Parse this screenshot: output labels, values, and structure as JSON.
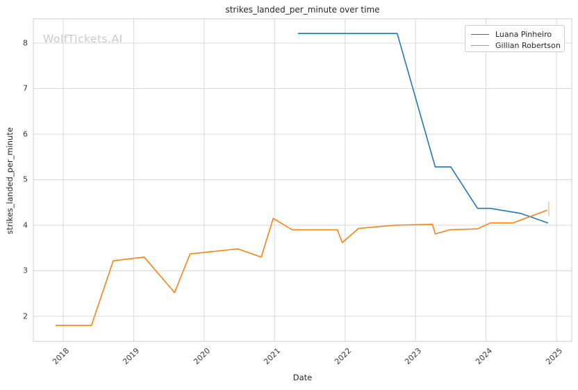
{
  "figure": {
    "title": "strikes_landed_per_minute over time",
    "watermark": "WolfTickets.AI",
    "xlabel": "Date",
    "ylabel": "strikes_landed_per_minute"
  },
  "colors": {
    "grid": "#d9d9d9",
    "plot_border": "#cccccc",
    "series_blue": "#1f77b4",
    "series_orange": "#ff7f0e",
    "watermark": "#c9c9c9",
    "text": "#262626"
  },
  "chart_data": {
    "type": "line",
    "title": "strikes_landed_per_minute over time",
    "xlabel": "Date",
    "ylabel": "strikes_landed_per_minute",
    "xlim": [
      2017.576,
      2025.217
    ],
    "ylim": [
      1.45,
      8.534
    ],
    "x_ticks": [
      "2018",
      "2019",
      "2020",
      "2021",
      "2022",
      "2023",
      "2024",
      "2025"
    ],
    "x_tick_values": [
      2018,
      2019,
      2020,
      2021,
      2022,
      2023,
      2024,
      2025
    ],
    "y_ticks": [
      "2",
      "3",
      "4",
      "5",
      "6",
      "7",
      "8"
    ],
    "y_tick_values": [
      2,
      3,
      4,
      5,
      6,
      7,
      8
    ],
    "grid": true,
    "legend_position": "upper right",
    "series": [
      {
        "name": "Luana Pinheiro",
        "color": "#1f77b4",
        "points": [
          [
            2021.33,
            8.21
          ],
          [
            2022.74,
            8.21
          ],
          [
            2023.28,
            5.28
          ],
          [
            2023.5,
            5.28
          ],
          [
            2023.88,
            4.37
          ],
          [
            2024.06,
            4.37
          ],
          [
            2024.49,
            4.26
          ],
          [
            2024.88,
            4.05
          ]
        ]
      },
      {
        "name": "Gillian Robertson",
        "color": "#ff7f0e",
        "points": [
          [
            2017.89,
            1.8
          ],
          [
            2018.4,
            1.8
          ],
          [
            2018.71,
            3.22
          ],
          [
            2019.15,
            3.3
          ],
          [
            2019.58,
            2.52
          ],
          [
            2019.8,
            3.37
          ],
          [
            2020.48,
            3.48
          ],
          [
            2020.81,
            3.3
          ],
          [
            2020.98,
            4.15
          ],
          [
            2021.25,
            3.9
          ],
          [
            2021.89,
            3.9
          ],
          [
            2021.96,
            3.62
          ],
          [
            2022.19,
            3.93
          ],
          [
            2022.7,
            4.0
          ],
          [
            2023.24,
            4.02
          ],
          [
            2023.28,
            3.81
          ],
          [
            2023.49,
            3.9
          ],
          [
            2023.88,
            3.92
          ],
          [
            2024.06,
            4.05
          ],
          [
            2024.38,
            4.05
          ],
          [
            2024.87,
            4.33
          ]
        ],
        "end_tick": {
          "x": 2024.89,
          "y_low": 4.2,
          "y_high": 4.52
        }
      }
    ]
  }
}
